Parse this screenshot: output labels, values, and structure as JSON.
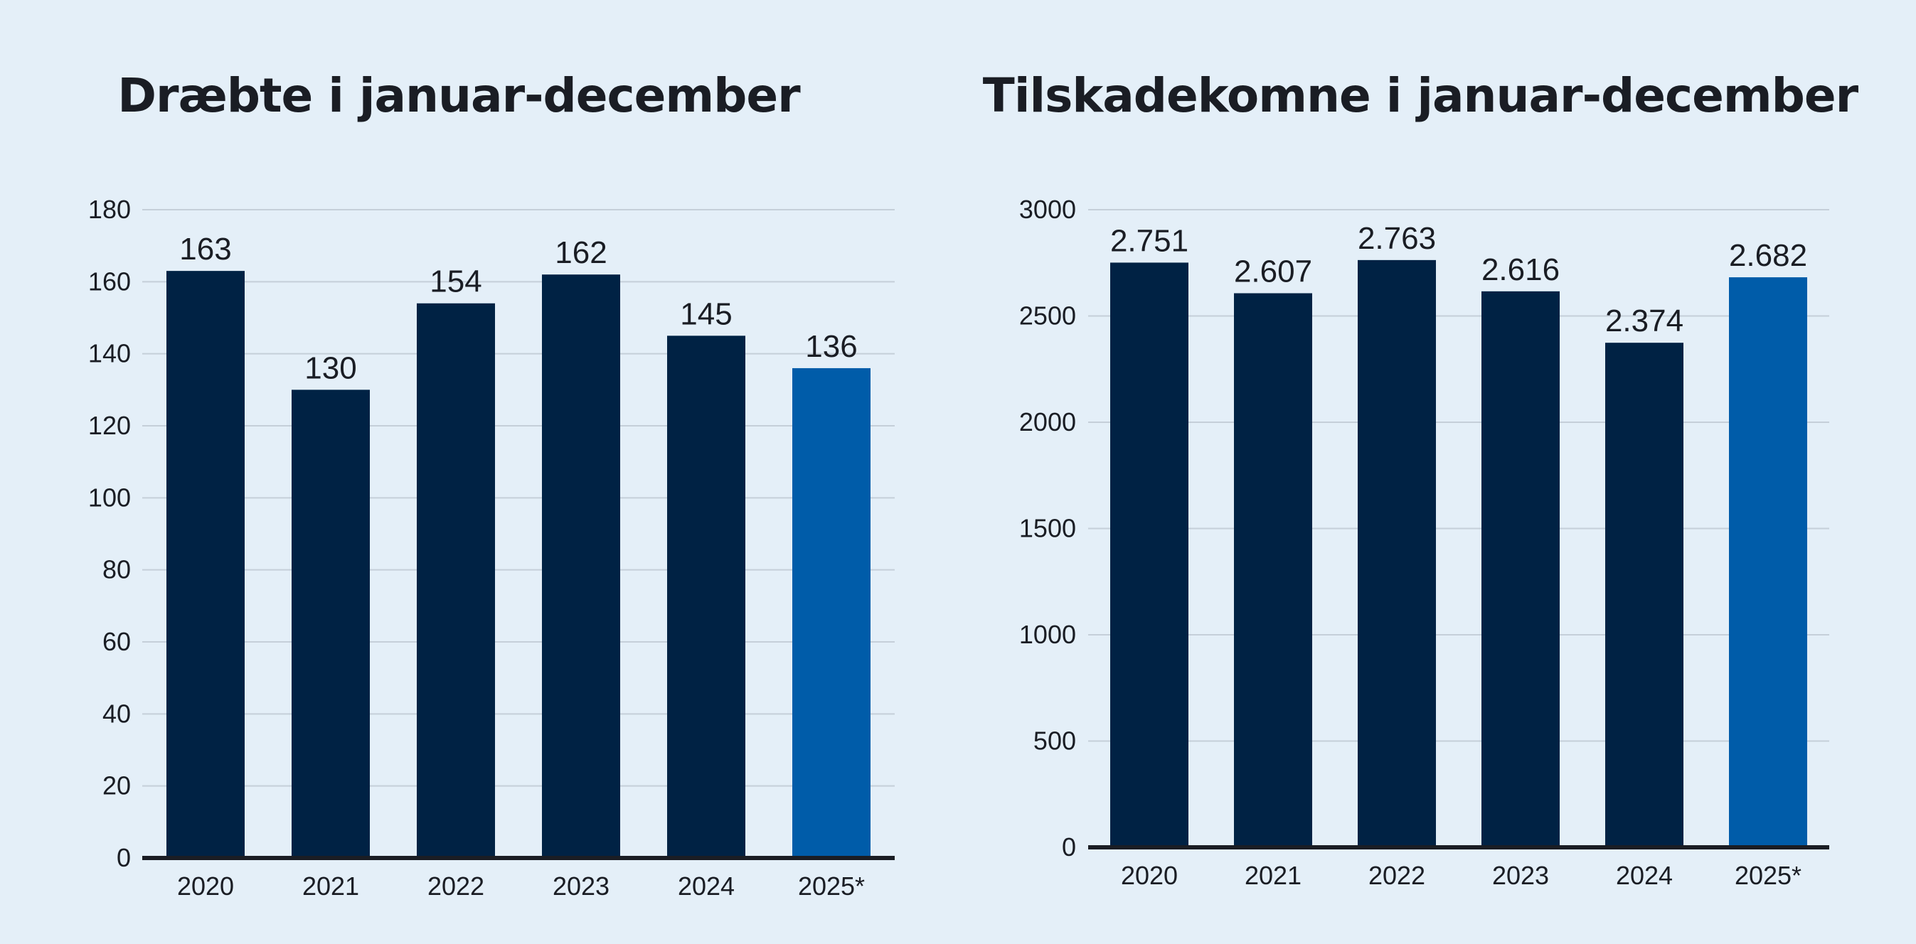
{
  "colors": {
    "background": "#e4eff8",
    "bar_primary": "#002244",
    "bar_highlight": "#005ca9",
    "grid": "#c5cfd9",
    "axis": "#1a1d24",
    "text": "#1a1d24"
  },
  "chart_data": [
    {
      "type": "bar",
      "title": "Dræbte i januar-december",
      "categories": [
        "2020",
        "2021",
        "2022",
        "2023",
        "2024",
        "2025*"
      ],
      "values": [
        163,
        130,
        154,
        162,
        145,
        136
      ],
      "value_labels": [
        "163",
        "130",
        "154",
        "162",
        "145",
        "136"
      ],
      "ylim": [
        0,
        180
      ],
      "yticks": [
        0,
        20,
        40,
        60,
        80,
        100,
        120,
        140,
        160,
        180
      ],
      "ytick_labels": [
        "0",
        "20",
        "40",
        "60",
        "80",
        "100",
        "120",
        "140",
        "160",
        "180"
      ],
      "highlight_index": 5,
      "grid": true,
      "xlabel": "",
      "ylabel": ""
    },
    {
      "type": "bar",
      "title": "Tilskadekomne i januar-december",
      "categories": [
        "2020",
        "2021",
        "2022",
        "2023",
        "2024",
        "2025*"
      ],
      "values": [
        2751,
        2607,
        2763,
        2616,
        2374,
        2682
      ],
      "value_labels": [
        "2.751",
        "2.607",
        "2.763",
        "2.616",
        "2.374",
        "2.682"
      ],
      "ylim": [
        0,
        3000
      ],
      "yticks": [
        0,
        500,
        1000,
        1500,
        2000,
        2500,
        3000
      ],
      "ytick_labels": [
        "0",
        "500",
        "1000",
        "1500",
        "2000",
        "2500",
        "3000"
      ],
      "highlight_index": 5,
      "grid": true,
      "xlabel": "",
      "ylabel": ""
    }
  ]
}
